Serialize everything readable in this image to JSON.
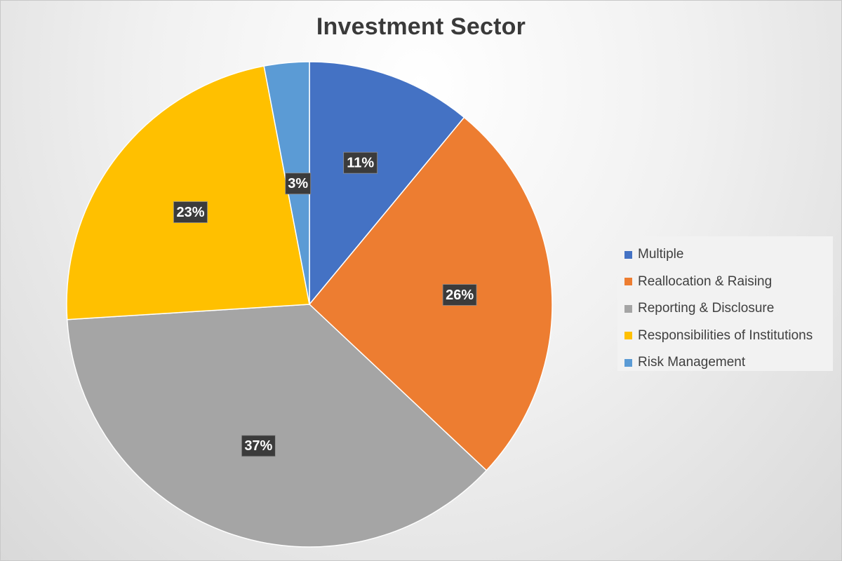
{
  "chart_data": {
    "type": "pie",
    "title": "Investment Sector",
    "categories": [
      "Multiple",
      "Reallocation & Raising",
      "Reporting & Disclosure",
      "Responsibilities of Institutions",
      "Risk Management"
    ],
    "values": [
      11,
      26,
      37,
      23,
      3
    ],
    "data_labels": [
      "11%",
      "26%",
      "37%",
      "23%",
      "3%"
    ],
    "colors": [
      "#4472C4",
      "#ED7D31",
      "#A5A5A5",
      "#FFC000",
      "#5B9BD5"
    ],
    "legend_position": "right",
    "start_angle": "12 o'clock, clockwise"
  },
  "legend": {
    "items": [
      {
        "label": "Multiple",
        "color": "#4472C4"
      },
      {
        "label": "Reallocation & Raising",
        "color": "#ED7D31"
      },
      {
        "label": "Reporting & Disclosure",
        "color": "#A5A5A5"
      },
      {
        "label": "Responsibilities of Institutions",
        "color": "#FFC000"
      },
      {
        "label": "Risk Management",
        "color": "#5B9BD5"
      }
    ]
  }
}
